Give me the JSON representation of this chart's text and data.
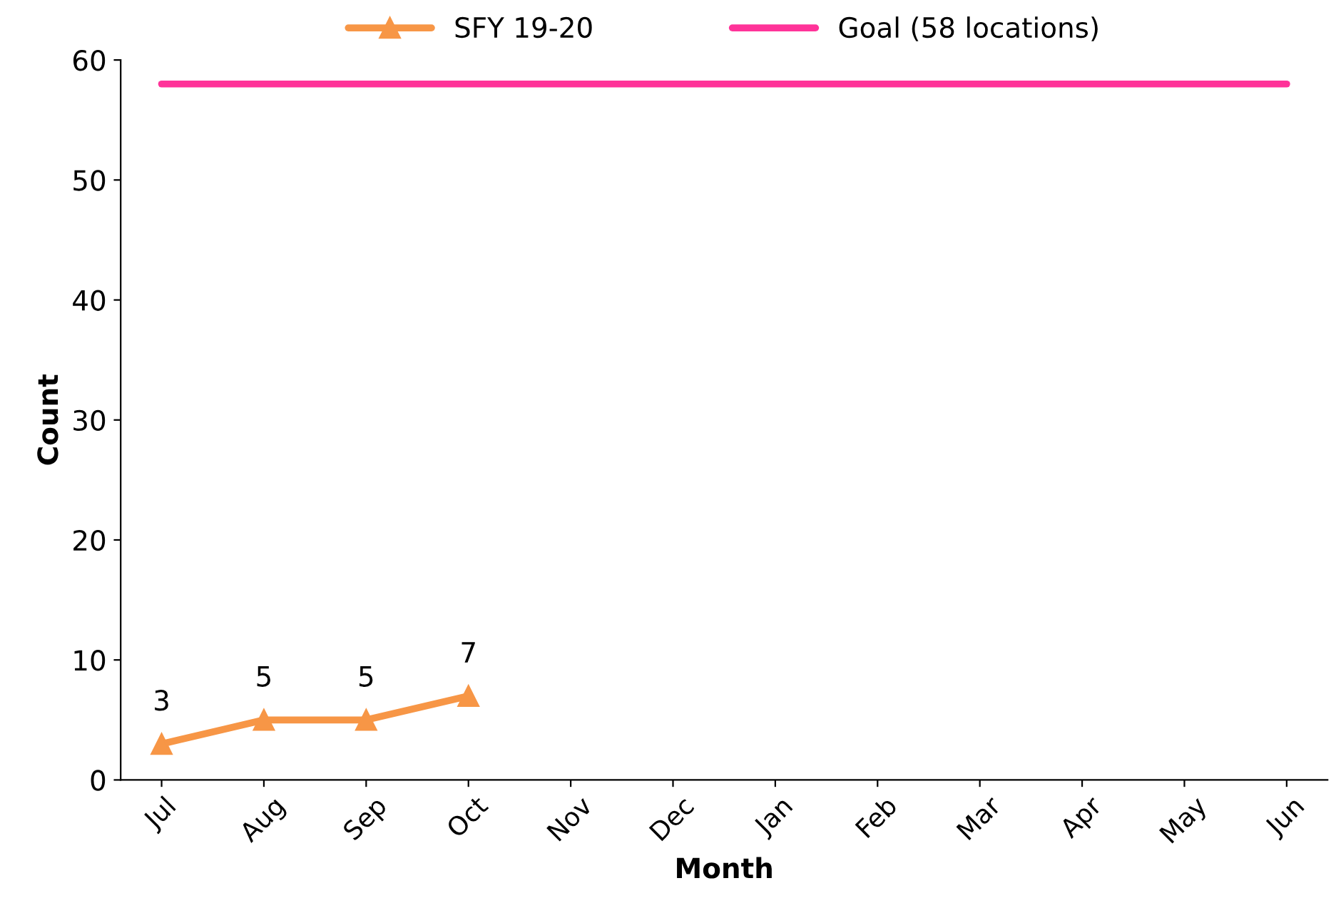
{
  "chart_data": {
    "type": "line",
    "xlabel": "Month",
    "ylabel": "Count",
    "categories": [
      "Jul",
      "Aug",
      "Sep",
      "Oct",
      "Nov",
      "Dec",
      "Jan",
      "Feb",
      "Mar",
      "Apr",
      "May",
      "Jun"
    ],
    "series": [
      {
        "name": "SFY 19-20",
        "color": "#f79646",
        "marker": "triangle",
        "values": [
          3,
          5,
          5,
          7,
          null,
          null,
          null,
          null,
          null,
          null,
          null,
          null
        ],
        "value_labels": [
          "3",
          "5",
          "5",
          "7",
          null,
          null,
          null,
          null,
          null,
          null,
          null,
          null
        ]
      },
      {
        "name": "Goal (58 locations)",
        "color": "#ff3399",
        "marker": "none",
        "values": [
          58,
          58,
          58,
          58,
          58,
          58,
          58,
          58,
          58,
          58,
          58,
          58
        ]
      }
    ],
    "ylim": [
      0,
      60
    ],
    "yticks": [
      0,
      10,
      20,
      30,
      40,
      50,
      60
    ],
    "grid": false,
    "legend": "top"
  }
}
